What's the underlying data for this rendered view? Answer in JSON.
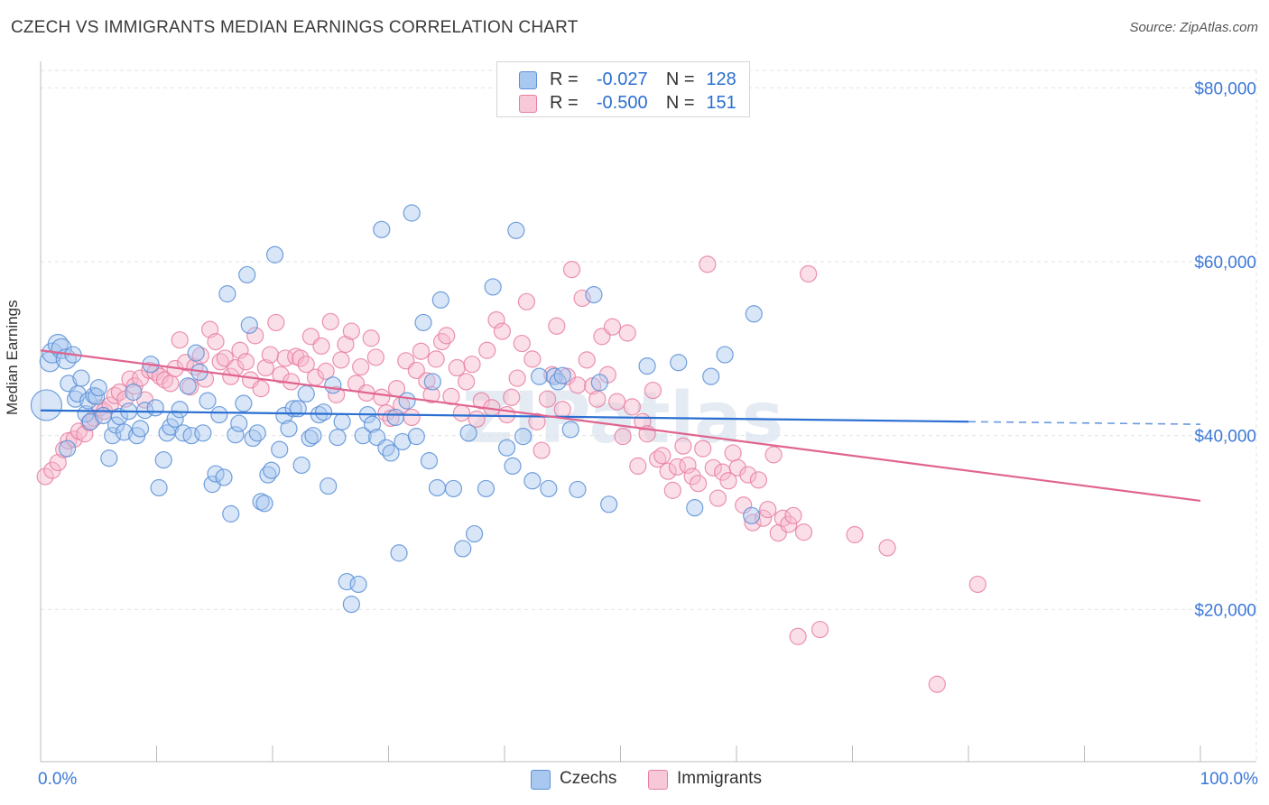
{
  "title": "CZECH VS IMMIGRANTS MEDIAN EARNINGS CORRELATION CHART",
  "source": "Source: ZipAtlas.com",
  "watermark": "ZIPatlas",
  "legend_top": [
    {
      "r_label": "R =",
      "r_value": "-0.027",
      "n_label": "N =",
      "n_value": "128"
    },
    {
      "r_label": "R =",
      "r_value": "-0.500",
      "n_label": "N =",
      "n_value": "151"
    }
  ],
  "legend_bottom": [
    "Czechs",
    "Immigrants"
  ],
  "colors": {
    "czechs_fill": "#a9c8f0",
    "czechs_stroke": "#5b8fd6",
    "czechs_line": "#2a6fd1",
    "immigrants_fill": "#f6b9cc",
    "immigrants_stroke": "#e77fa2",
    "immigrants_line": "#e0648f",
    "axis_value": "#3c78d8",
    "grid": "#e3e3e3"
  },
  "chart_data": {
    "type": "scatter",
    "title": "CZECH VS IMMIGRANTS MEDIAN EARNINGS CORRELATION CHART",
    "xlabel": "",
    "ylabel": "Median Earnings",
    "xlim": [
      0,
      100
    ],
    "ylim": [
      2500,
      82000
    ],
    "x_tick_labels": [
      "0.0%",
      "100.0%"
    ],
    "y_ticks": [
      20000,
      40000,
      60000,
      80000
    ],
    "y_tick_labels": [
      "$20,000",
      "$40,000",
      "$60,000",
      "$80,000"
    ],
    "grid": true,
    "legend_position": "top-center",
    "series": [
      {
        "name": "Czechs",
        "r": -0.027,
        "n": 128,
        "trend": {
          "x": [
            0,
            80
          ],
          "y": [
            42900,
            41600
          ],
          "dashed_extension": {
            "x": [
              80,
              100
            ],
            "y": [
              41600,
              41300
            ]
          }
        },
        "points": [
          [
            0.5,
            43500
          ],
          [
            0.8,
            48500
          ],
          [
            1.0,
            49500
          ],
          [
            1.5,
            50500
          ],
          [
            1.8,
            50000
          ],
          [
            2.2,
            48800
          ],
          [
            2.3,
            38500
          ],
          [
            2.4,
            46000
          ],
          [
            2.8,
            49300
          ],
          [
            3.0,
            44200
          ],
          [
            3.2,
            44800
          ],
          [
            3.5,
            46600
          ],
          [
            3.9,
            42500
          ],
          [
            4.1,
            44000
          ],
          [
            4.3,
            41600
          ],
          [
            4.6,
            44600
          ],
          [
            4.8,
            44500
          ],
          [
            5.0,
            45500
          ],
          [
            5.4,
            42300
          ],
          [
            5.9,
            37400
          ],
          [
            6.2,
            40000
          ],
          [
            6.5,
            41200
          ],
          [
            6.8,
            42200
          ],
          [
            7.2,
            40400
          ],
          [
            7.6,
            42800
          ],
          [
            8.0,
            45000
          ],
          [
            8.3,
            40000
          ],
          [
            8.6,
            40800
          ],
          [
            9.0,
            42900
          ],
          [
            9.5,
            48200
          ],
          [
            9.9,
            43200
          ],
          [
            10.2,
            34000
          ],
          [
            10.6,
            37200
          ],
          [
            10.9,
            40300
          ],
          [
            11.2,
            41000
          ],
          [
            11.6,
            41900
          ],
          [
            12.0,
            43000
          ],
          [
            12.3,
            40300
          ],
          [
            12.7,
            45700
          ],
          [
            13.0,
            40000
          ],
          [
            13.4,
            49500
          ],
          [
            13.7,
            47300
          ],
          [
            14.0,
            40300
          ],
          [
            14.4,
            44000
          ],
          [
            14.8,
            34400
          ],
          [
            15.1,
            35600
          ],
          [
            15.4,
            42400
          ],
          [
            15.8,
            35200
          ],
          [
            16.1,
            56300
          ],
          [
            16.4,
            31000
          ],
          [
            16.8,
            40100
          ],
          [
            17.1,
            41400
          ],
          [
            17.5,
            43700
          ],
          [
            17.8,
            58500
          ],
          [
            18.0,
            52700
          ],
          [
            18.3,
            39700
          ],
          [
            18.7,
            40300
          ],
          [
            19.0,
            32400
          ],
          [
            19.3,
            32200
          ],
          [
            19.6,
            35500
          ],
          [
            19.9,
            36000
          ],
          [
            20.2,
            60800
          ],
          [
            20.6,
            38400
          ],
          [
            21.0,
            42300
          ],
          [
            21.4,
            40800
          ],
          [
            21.8,
            43100
          ],
          [
            22.2,
            43100
          ],
          [
            22.5,
            36600
          ],
          [
            22.9,
            44800
          ],
          [
            23.2,
            39700
          ],
          [
            23.5,
            40000
          ],
          [
            24.0,
            42400
          ],
          [
            24.4,
            42700
          ],
          [
            24.8,
            34200
          ],
          [
            25.2,
            45800
          ],
          [
            25.6,
            39800
          ],
          [
            26.0,
            41600
          ],
          [
            26.4,
            23200
          ],
          [
            26.8,
            20600
          ],
          [
            27.4,
            22900
          ],
          [
            27.8,
            40000
          ],
          [
            28.2,
            42400
          ],
          [
            28.6,
            41300
          ],
          [
            29.0,
            39800
          ],
          [
            29.4,
            63700
          ],
          [
            29.8,
            38600
          ],
          [
            30.2,
            38000
          ],
          [
            30.6,
            42100
          ],
          [
            30.9,
            26500
          ],
          [
            31.2,
            39300
          ],
          [
            31.6,
            44000
          ],
          [
            32.0,
            65600
          ],
          [
            32.4,
            39900
          ],
          [
            33.0,
            53000
          ],
          [
            33.5,
            37100
          ],
          [
            33.8,
            46200
          ],
          [
            34.2,
            34000
          ],
          [
            34.5,
            55600
          ],
          [
            35.6,
            33900
          ],
          [
            36.4,
            27000
          ],
          [
            36.9,
            40300
          ],
          [
            37.4,
            28700
          ],
          [
            38.4,
            33900
          ],
          [
            39.0,
            57100
          ],
          [
            40.2,
            38600
          ],
          [
            40.7,
            36500
          ],
          [
            41.0,
            63600
          ],
          [
            41.6,
            39900
          ],
          [
            42.4,
            34800
          ],
          [
            43.0,
            46800
          ],
          [
            43.8,
            33900
          ],
          [
            44.3,
            46800
          ],
          [
            44.6,
            46200
          ],
          [
            45.0,
            46900
          ],
          [
            45.7,
            40700
          ],
          [
            46.3,
            33800
          ],
          [
            47.7,
            56200
          ],
          [
            48.2,
            46100
          ],
          [
            49.0,
            32100
          ],
          [
            52.3,
            48000
          ],
          [
            55.0,
            48400
          ],
          [
            56.4,
            31700
          ],
          [
            57.8,
            46800
          ],
          [
            59.0,
            49300
          ],
          [
            61.5,
            54000
          ],
          [
            61.3,
            30800
          ]
        ]
      },
      {
        "name": "Immigrants",
        "r": -0.5,
        "n": 151,
        "trend": {
          "x": [
            0,
            100
          ],
          "y": [
            49800,
            32500
          ]
        },
        "points": [
          [
            0.4,
            35300
          ],
          [
            1.0,
            36000
          ],
          [
            1.5,
            36900
          ],
          [
            2.0,
            38400
          ],
          [
            2.4,
            39400
          ],
          [
            2.9,
            39600
          ],
          [
            3.3,
            40500
          ],
          [
            3.8,
            40200
          ],
          [
            4.2,
            41500
          ],
          [
            4.6,
            42000
          ],
          [
            5.1,
            43200
          ],
          [
            5.5,
            42800
          ],
          [
            6.0,
            43500
          ],
          [
            6.4,
            44600
          ],
          [
            6.8,
            45000
          ],
          [
            7.3,
            44200
          ],
          [
            7.7,
            46500
          ],
          [
            8.1,
            45700
          ],
          [
            8.6,
            46600
          ],
          [
            9.0,
            44100
          ],
          [
            9.4,
            47500
          ],
          [
            9.9,
            47300
          ],
          [
            10.3,
            46800
          ],
          [
            10.7,
            46400
          ],
          [
            11.2,
            46000
          ],
          [
            11.6,
            47700
          ],
          [
            12.0,
            51000
          ],
          [
            12.5,
            48400
          ],
          [
            12.9,
            45600
          ],
          [
            13.3,
            47900
          ],
          [
            13.8,
            49200
          ],
          [
            14.2,
            46500
          ],
          [
            14.6,
            52200
          ],
          [
            15.1,
            50800
          ],
          [
            15.5,
            48500
          ],
          [
            15.9,
            48900
          ],
          [
            16.4,
            46800
          ],
          [
            16.8,
            47800
          ],
          [
            17.2,
            49800
          ],
          [
            17.7,
            48500
          ],
          [
            18.1,
            46400
          ],
          [
            18.5,
            51500
          ],
          [
            19.0,
            45400
          ],
          [
            19.4,
            47800
          ],
          [
            19.8,
            49300
          ],
          [
            20.3,
            53000
          ],
          [
            20.7,
            47000
          ],
          [
            21.1,
            48900
          ],
          [
            21.6,
            46200
          ],
          [
            22.0,
            49100
          ],
          [
            22.4,
            48900
          ],
          [
            22.9,
            48200
          ],
          [
            23.3,
            51400
          ],
          [
            23.7,
            46700
          ],
          [
            24.2,
            50300
          ],
          [
            24.6,
            47400
          ],
          [
            25.0,
            53100
          ],
          [
            25.5,
            44700
          ],
          [
            25.9,
            48700
          ],
          [
            26.3,
            50500
          ],
          [
            26.8,
            52000
          ],
          [
            27.2,
            46000
          ],
          [
            27.6,
            47900
          ],
          [
            28.1,
            44900
          ],
          [
            28.5,
            51200
          ],
          [
            28.9,
            49000
          ],
          [
            29.4,
            44400
          ],
          [
            29.8,
            42600
          ],
          [
            30.2,
            42000
          ],
          [
            30.7,
            45400
          ],
          [
            31.1,
            43500
          ],
          [
            31.5,
            48600
          ],
          [
            32.0,
            42100
          ],
          [
            32.4,
            47500
          ],
          [
            32.8,
            49700
          ],
          [
            33.3,
            46300
          ],
          [
            33.7,
            44700
          ],
          [
            34.1,
            48800
          ],
          [
            34.6,
            50800
          ],
          [
            35.0,
            51500
          ],
          [
            35.4,
            44500
          ],
          [
            35.9,
            47800
          ],
          [
            36.3,
            42600
          ],
          [
            36.7,
            46200
          ],
          [
            37.2,
            48200
          ],
          [
            37.6,
            41900
          ],
          [
            38.0,
            44000
          ],
          [
            38.5,
            49800
          ],
          [
            38.9,
            43200
          ],
          [
            39.3,
            53300
          ],
          [
            39.8,
            52000
          ],
          [
            40.2,
            42400
          ],
          [
            40.6,
            44400
          ],
          [
            41.1,
            46600
          ],
          [
            41.5,
            50600
          ],
          [
            41.9,
            55400
          ],
          [
            42.4,
            48800
          ],
          [
            42.8,
            41600
          ],
          [
            43.2,
            38300
          ],
          [
            43.7,
            44200
          ],
          [
            44.1,
            47000
          ],
          [
            44.5,
            52600
          ],
          [
            45.0,
            43000
          ],
          [
            45.4,
            46800
          ],
          [
            45.8,
            59100
          ],
          [
            46.3,
            45800
          ],
          [
            46.7,
            55800
          ],
          [
            47.1,
            48700
          ],
          [
            47.6,
            45700
          ],
          [
            48.0,
            44200
          ],
          [
            48.4,
            51400
          ],
          [
            48.9,
            47000
          ],
          [
            49.3,
            52500
          ],
          [
            49.7,
            43900
          ],
          [
            50.2,
            39900
          ],
          [
            50.6,
            51800
          ],
          [
            51.0,
            43300
          ],
          [
            51.5,
            36500
          ],
          [
            51.9,
            41600
          ],
          [
            52.3,
            40200
          ],
          [
            52.8,
            45200
          ],
          [
            53.2,
            37300
          ],
          [
            53.6,
            37700
          ],
          [
            54.1,
            35900
          ],
          [
            54.5,
            33700
          ],
          [
            54.9,
            36400
          ],
          [
            55.4,
            38800
          ],
          [
            55.8,
            36600
          ],
          [
            56.2,
            35300
          ],
          [
            56.7,
            34500
          ],
          [
            57.1,
            38500
          ],
          [
            57.5,
            59700
          ],
          [
            58.0,
            36300
          ],
          [
            58.4,
            32800
          ],
          [
            58.8,
            35800
          ],
          [
            59.3,
            34800
          ],
          [
            59.7,
            38000
          ],
          [
            60.1,
            36300
          ],
          [
            60.6,
            32000
          ],
          [
            61.0,
            35500
          ],
          [
            61.4,
            30000
          ],
          [
            61.9,
            34900
          ],
          [
            62.3,
            30500
          ],
          [
            62.7,
            31500
          ],
          [
            63.2,
            37800
          ],
          [
            63.6,
            28800
          ],
          [
            64.0,
            30500
          ],
          [
            64.5,
            29800
          ],
          [
            64.9,
            30800
          ],
          [
            65.3,
            16900
          ],
          [
            65.8,
            28900
          ],
          [
            66.2,
            58600
          ],
          [
            67.2,
            17700
          ],
          [
            70.2,
            28600
          ],
          [
            73.0,
            27100
          ],
          [
            77.3,
            11400
          ],
          [
            80.8,
            22900
          ]
        ]
      }
    ]
  }
}
